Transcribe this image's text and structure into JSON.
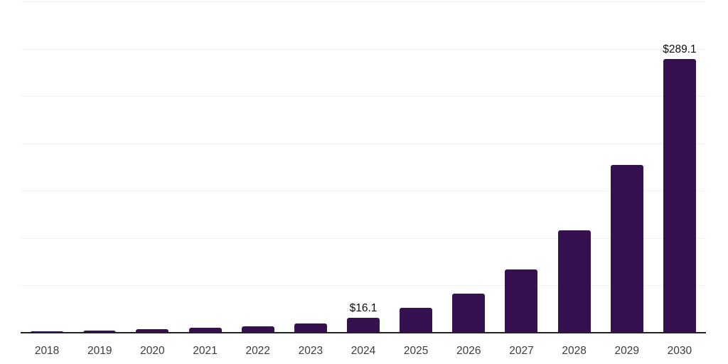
{
  "chart_data": {
    "type": "bar",
    "title": "",
    "categories": [
      "2018",
      "2019",
      "2020",
      "2021",
      "2022",
      "2023",
      "2024",
      "2025",
      "2026",
      "2027",
      "2028",
      "2029",
      "2030"
    ],
    "values": [
      1.5,
      2.5,
      3.5,
      5.2,
      6.5,
      9.8,
      16.1,
      26.1,
      41.5,
      66.5,
      108.5,
      177.0,
      289.1
    ],
    "data_labels": [
      "",
      "",
      "",
      "",
      "",
      "",
      "$16.1",
      "",
      "",
      "",
      "",
      "",
      "$289.1"
    ],
    "xlabel": "",
    "ylabel": "",
    "ylim": [
      0,
      350
    ],
    "gridline_step": 50,
    "grid": true,
    "legend": "none",
    "y_axis_labels_visible": false,
    "colors": {
      "bar_fill": "#36114F",
      "axis_line": "#222222",
      "gridline": "#f2f2f2",
      "tick_label": "#3c3c3c",
      "data_label": "#0d0d0d",
      "background": "#ffffff"
    }
  }
}
